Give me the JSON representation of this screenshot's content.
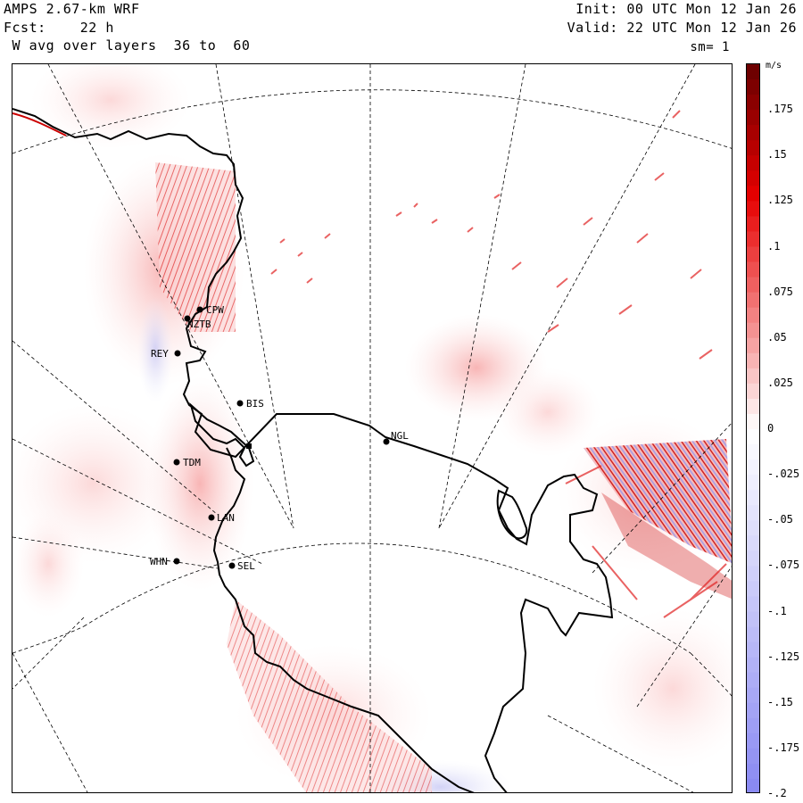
{
  "header": {
    "model": "AMPS 2.67-km WRF",
    "forecast": "Fcst:    22 h",
    "field": " W avg over layers  36 to  60",
    "init": "Init: 00 UTC Mon 12 Jan 26",
    "valid": "Valid: 22 UTC Mon 12 Jan 26",
    "smoothing": "sm= 1"
  },
  "colorbar": {
    "unit": "m/s",
    "labels": [
      ".175",
      ".15",
      ".125",
      ".1",
      ".075",
      ".05",
      ".025",
      "0",
      "-.025",
      "-.05",
      "-.075",
      "-.1",
      "-.125",
      "-.15",
      "-.175",
      "-.2"
    ],
    "max": 0.2,
    "min": -0.2,
    "high_color": "#6e0000",
    "mid_color": "#ffffff",
    "low_color": "#8a8af2"
  },
  "stations": [
    {
      "id": "CPW"
    },
    {
      "id": "NZTB"
    },
    {
      "id": "REY"
    },
    {
      "id": "BIS"
    },
    {
      "id": "NGL"
    },
    {
      "id": "TDM"
    },
    {
      "id": "LAN"
    },
    {
      "id": "WHN"
    },
    {
      "id": "SEL"
    }
  ],
  "colors": {
    "coastline": "#000000",
    "gridline": "#000000"
  }
}
